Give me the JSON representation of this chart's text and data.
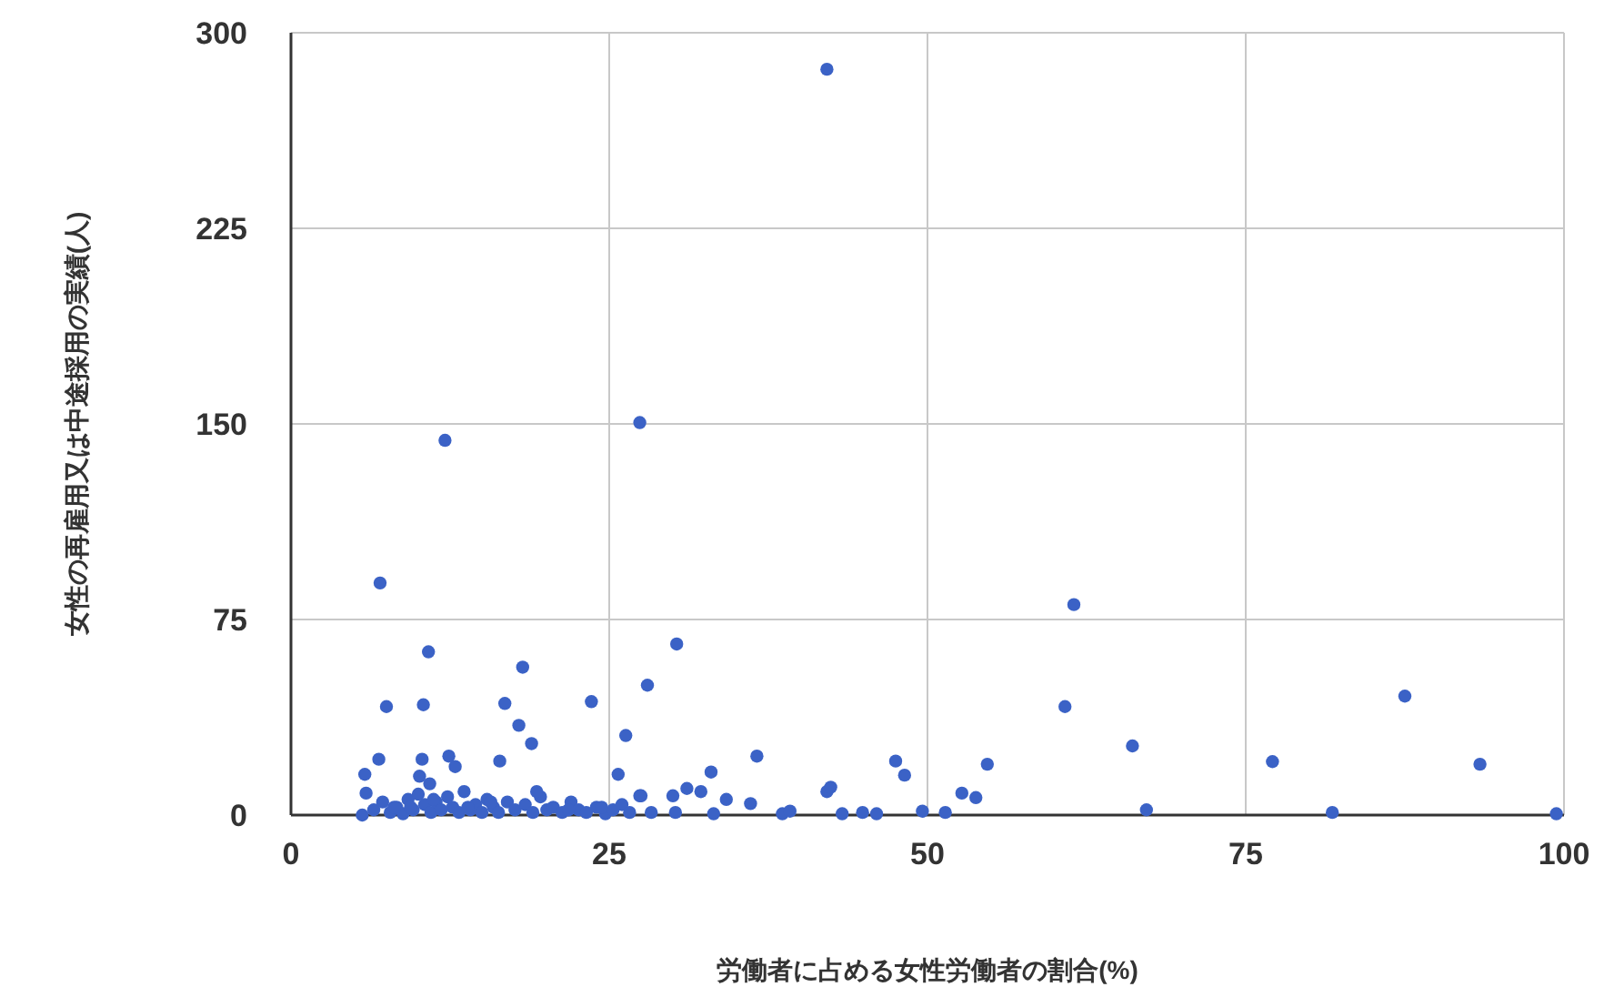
{
  "chart_data": {
    "type": "scatter",
    "xlabel": "労働者に占める女性労働者の割合(%)",
    "ylabel": "女性の再雇用又は中途採用の実績(人)",
    "xlim": [
      0,
      100
    ],
    "ylim": [
      0,
      300
    ],
    "xticks": [
      0,
      25,
      50,
      75,
      100
    ],
    "yticks": [
      0,
      75,
      150,
      225,
      300
    ],
    "grid": true,
    "marker": "circle",
    "series": [
      {
        "color": "#3b62c6",
        "x": [
          42.1,
          12.1,
          27.4,
          7.0,
          10.8,
          18.2,
          7.5,
          10.4,
          16.8,
          17.9,
          18.9,
          23.6,
          28.0,
          26.3,
          25.7,
          27.4,
          6.9,
          5.8,
          5.9,
          5.6,
          10.3,
          12.4,
          12.9,
          16.4,
          10.1,
          10.9,
          30.3,
          36.6,
          33.0,
          31.1,
          32.2,
          27.5,
          30.0,
          34.2,
          36.1,
          42.1,
          42.4,
          47.5,
          48.2,
          52.7,
          53.8,
          54.7,
          60.8,
          61.5,
          28.3,
          30.2,
          33.2,
          38.6,
          39.2,
          43.3,
          44.9,
          46.0,
          49.6,
          51.4,
          66.1,
          67.2,
          77.1,
          87.5,
          93.4,
          81.8,
          99.4,
          6.5,
          7.2,
          7.8,
          8.3,
          8.8,
          9.2,
          9.6,
          10.0,
          10.5,
          11.0,
          11.4,
          11.8,
          12.3,
          12.7,
          13.2,
          13.6,
          14.1,
          14.5,
          15.0,
          15.4,
          15.9,
          16.3,
          17.0,
          17.6,
          18.4,
          19.0,
          19.6,
          20.1,
          20.6,
          21.3,
          22.0,
          22.6,
          23.2,
          24.0,
          24.7,
          25.3,
          26.0,
          26.6,
          8.1,
          9.4,
          11.2,
          13.9,
          15.7,
          19.3,
          21.8,
          24.4
        ],
        "values": [
          286,
          143.7,
          150.5,
          89,
          62.6,
          56.7,
          41.6,
          42.3,
          42.8,
          34.4,
          27.4,
          43.5,
          49.8,
          30.5,
          15.6,
          7.4,
          21.4,
          15.6,
          8.4,
          0,
          21.4,
          22.6,
          18.6,
          20.7,
          14.9,
          12,
          65.6,
          22.6,
          16.5,
          10.2,
          9,
          7.4,
          7.4,
          6,
          4.4,
          9,
          10.7,
          20.7,
          15.3,
          8.4,
          6.7,
          19.5,
          41.6,
          80.7,
          1,
          1,
          0.5,
          0.5,
          1.5,
          0.5,
          1,
          0.5,
          1.5,
          1,
          26.5,
          2,
          20.5,
          45.6,
          19.5,
          1,
          0.5,
          2,
          5,
          1,
          3,
          0.5,
          6,
          2,
          8,
          4,
          1,
          5,
          2,
          7,
          3,
          1,
          9,
          2,
          4,
          1,
          6,
          3,
          1,
          5,
          2,
          4,
          1,
          7,
          2,
          3,
          1,
          5,
          2,
          1,
          3,
          0.5,
          2,
          4,
          1,
          3,
          3,
          6,
          3,
          5,
          9,
          2,
          3
        ]
      }
    ]
  }
}
